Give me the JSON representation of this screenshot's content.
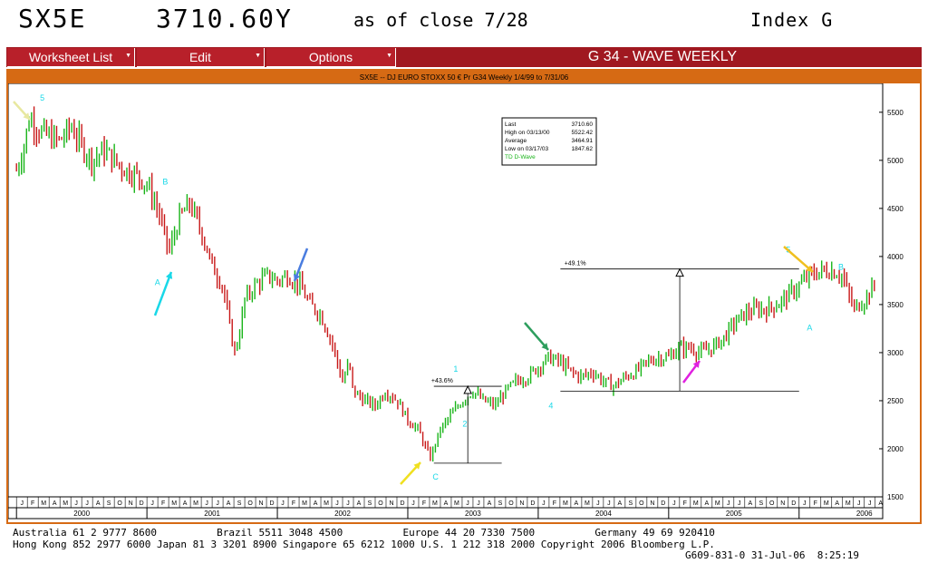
{
  "header": {
    "ticker": "SX5E",
    "price": "3710.60Y",
    "as_of": "as of close  7/28",
    "index": "Index  G"
  },
  "menu": {
    "items": [
      {
        "label": "Worksheet List"
      },
      {
        "label": "Edit"
      },
      {
        "label": "Options"
      }
    ],
    "title": "G 34 - WAVE WEEKLY"
  },
  "chart_header": "SX5E -- DJ EURO STOXX 50 € Pr G34 Weekly 1/4/99 to 7/31/06",
  "colors": {
    "up": "#18b418",
    "down": "#c81818",
    "cyan": "#19d8e8",
    "frame": "#d66a14",
    "menu": "#a01820"
  },
  "legend_box": {
    "rows": [
      {
        "label": "Last",
        "value": "3710.60"
      },
      {
        "label": "High on  03/13/00",
        "value": "5522.42"
      },
      {
        "label": "Average",
        "value": "3464.91"
      },
      {
        "label": "Low on  03/17/03",
        "value": "1847.62"
      }
    ],
    "series_label": "TD D-Wave"
  },
  "chart_data": {
    "type": "line",
    "title": "SX5E -- DJ EURO STOXX 50 € Pr G34 Weekly 1/4/99 to 7/31/06",
    "y_ticks": [
      1500,
      2000,
      2500,
      3000,
      3500,
      4000,
      4500,
      5000,
      5500
    ],
    "ylim": [
      1500,
      5800
    ],
    "x_years": [
      "2000",
      "2001",
      "2002",
      "2003",
      "2004",
      "2005",
      "2006"
    ],
    "x_months": [
      "J",
      "F",
      "M",
      "A",
      "M",
      "J",
      "J",
      "A",
      "S",
      "O",
      "N",
      "D"
    ],
    "series": [
      {
        "values_note": "",
        "x": [
          2000.0,
          2000.05,
          2000.1,
          2000.18,
          2000.25,
          2000.33,
          2000.42,
          2000.5,
          2000.58,
          2000.67,
          2000.75,
          2000.83,
          2000.92,
          2001.0,
          2001.08,
          2001.17,
          2001.25,
          2001.33,
          2001.42,
          2001.5,
          2001.58,
          2001.67,
          2001.71,
          2001.75,
          2001.83,
          2001.92,
          2002.0,
          2002.08,
          2002.17,
          2002.25,
          2002.33,
          2002.42,
          2002.5,
          2002.55,
          2002.58,
          2002.67,
          2002.75,
          2002.83,
          2002.92,
          2003.0,
          2003.08,
          2003.17,
          2003.25,
          2003.33,
          2003.42,
          2003.5,
          2003.58,
          2003.67,
          2003.75,
          2003.83,
          2003.92,
          2004.0,
          2004.08,
          2004.17,
          2004.25,
          2004.33,
          2004.42,
          2004.5,
          2004.58,
          2004.67,
          2004.75,
          2004.83,
          2004.92,
          2005.0,
          2005.08,
          2005.17,
          2005.25,
          2005.33,
          2005.42,
          2005.5,
          2005.58,
          2005.67,
          2005.75,
          2005.83,
          2005.92,
          2006.0,
          2006.08,
          2006.17,
          2006.25,
          2006.33,
          2006.38,
          2006.42,
          2006.5,
          2006.58
        ],
        "values": [
          4900,
          5100,
          5450,
          5300,
          5250,
          5200,
          5350,
          5150,
          5000,
          5100,
          5000,
          4900,
          4850,
          4750,
          4500,
          4050,
          4400,
          4550,
          4250,
          3900,
          3700,
          3000,
          3200,
          3550,
          3700,
          3800,
          3750,
          3800,
          3700,
          3500,
          3400,
          3100,
          2700,
          2900,
          2600,
          2500,
          2450,
          2600,
          2500,
          2300,
          2200,
          1900,
          2200,
          2350,
          2500,
          2600,
          2500,
          2450,
          2600,
          2700,
          2750,
          2850,
          2950,
          2900,
          2800,
          2750,
          2800,
          2700,
          2650,
          2750,
          2800,
          2900,
          2950,
          2950,
          3050,
          3050,
          3000,
          3050,
          3150,
          3300,
          3400,
          3450,
          3450,
          3500,
          3600,
          3700,
          3800,
          3850,
          3850,
          3800,
          3600,
          3450,
          3550,
          3700
        ]
      }
    ],
    "measures": [
      {
        "label": "+43.6%"
      },
      {
        "label": "+49.1%"
      }
    ],
    "wave_labels": [
      "5",
      "A",
      "B",
      "C",
      "1",
      "2",
      "4",
      "5",
      "A",
      "B"
    ]
  },
  "footer": {
    "line1": "Australia 61 2 9777 8600          Brazil 5511 3048 4500          Europe 44 20 7330 7500          Germany 49 69 920410",
    "line2": "Hong Kong 852 2977 6000 Japan 81 3 3201 8900 Singapore 65 6212 1000 U.S. 1 212 318 2000 Copyright 2006 Bloomberg L.P.",
    "line3": "G609-831-0 31-Jul-06  8:25:19"
  }
}
